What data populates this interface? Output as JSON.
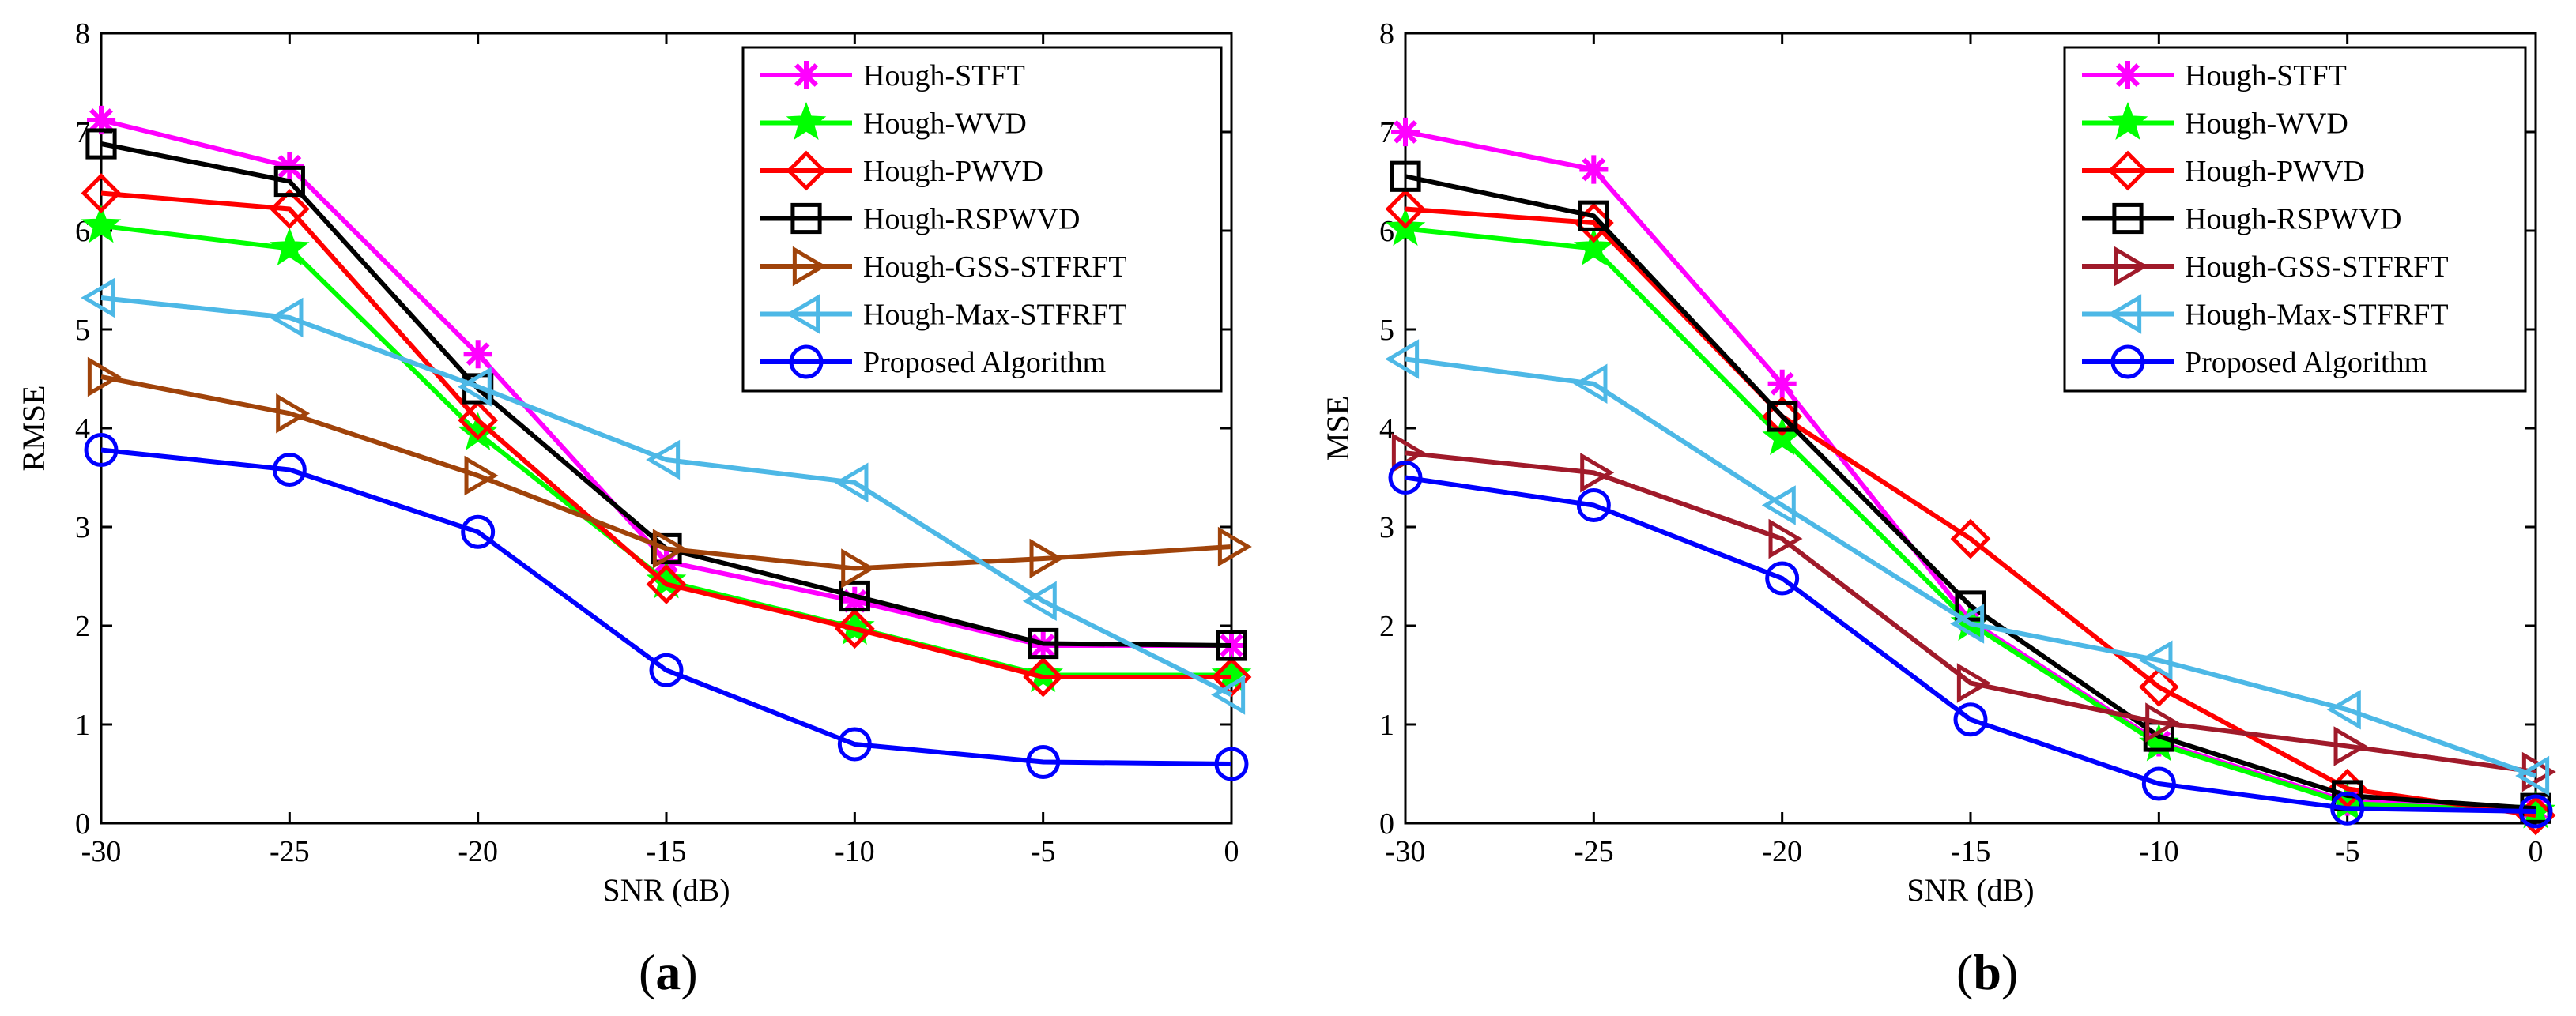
{
  "chart_data": [
    {
      "type": "line",
      "caption_letter": "a",
      "caption_open": "(",
      "caption_close": ")",
      "title": "",
      "xlabel": "SNR (dB)",
      "ylabel": "RMSE",
      "xlim": [
        -30,
        0
      ],
      "ylim": [
        0,
        8
      ],
      "xticks": [
        -30,
        -25,
        -20,
        -15,
        -10,
        -5,
        0
      ],
      "yticks": [
        0,
        1,
        2,
        3,
        4,
        5,
        6,
        7,
        8
      ],
      "grid": false,
      "legend_position": "top-right",
      "x": [
        -30,
        -25,
        -20,
        -15,
        -10,
        -5,
        0
      ],
      "series": [
        {
          "name": "Hough-STFT",
          "color": "#ff00ff",
          "marker": "asterisk",
          "values": [
            7.12,
            6.65,
            4.75,
            2.65,
            2.25,
            1.8,
            1.8
          ]
        },
        {
          "name": "Hough-WVD",
          "color": "#00ff00",
          "marker": "star",
          "values": [
            6.05,
            5.82,
            3.95,
            2.45,
            1.98,
            1.5,
            1.5
          ]
        },
        {
          "name": "Hough-PWVD",
          "color": "#ff0000",
          "marker": "diamond",
          "values": [
            6.38,
            6.22,
            4.08,
            2.42,
            1.97,
            1.48,
            1.48
          ]
        },
        {
          "name": "Hough-RSPWVD",
          "color": "#000000",
          "marker": "square",
          "values": [
            6.88,
            6.5,
            4.4,
            2.78,
            2.3,
            1.82,
            1.8
          ]
        },
        {
          "name": "Hough-GSS-STFRFT",
          "color": "#a0430a",
          "marker": "triangle-right",
          "values": [
            4.52,
            4.15,
            3.52,
            2.78,
            2.58,
            2.68,
            2.8
          ]
        },
        {
          "name": "Hough-Max-STFRFT",
          "color": "#4db8e6",
          "marker": "triangle-left",
          "values": [
            5.32,
            5.12,
            4.42,
            3.68,
            3.45,
            2.25,
            1.3
          ]
        },
        {
          "name": "Proposed Algorithm",
          "color": "#0000ff",
          "marker": "circle",
          "values": [
            3.78,
            3.58,
            2.95,
            1.55,
            0.8,
            0.62,
            0.6
          ]
        }
      ]
    },
    {
      "type": "line",
      "caption_letter": "b",
      "caption_open": "(",
      "caption_close": ")",
      "title": "",
      "xlabel": "SNR (dB)",
      "ylabel": "MSE",
      "xlim": [
        -30,
        0
      ],
      "ylim": [
        0,
        8
      ],
      "xticks": [
        -30,
        -25,
        -20,
        -15,
        -10,
        -5,
        0
      ],
      "yticks": [
        0,
        1,
        2,
        3,
        4,
        5,
        6,
        7,
        8
      ],
      "grid": false,
      "legend_position": "top-right",
      "x": [
        -30,
        -25,
        -20,
        -15,
        -10,
        -5,
        0
      ],
      "series": [
        {
          "name": "Hough-STFT",
          "color": "#ff00ff",
          "marker": "asterisk",
          "values": [
            7.0,
            6.62,
            4.45,
            2.05,
            0.82,
            0.22,
            0.15
          ]
        },
        {
          "name": "Hough-WVD",
          "color": "#00ff00",
          "marker": "star",
          "values": [
            6.02,
            5.82,
            3.9,
            2.02,
            0.8,
            0.2,
            0.12
          ]
        },
        {
          "name": "Hough-PWVD",
          "color": "#ff0000",
          "marker": "diamond",
          "values": [
            6.22,
            6.08,
            4.12,
            2.88,
            1.38,
            0.35,
            0.08
          ]
        },
        {
          "name": "Hough-RSPWVD",
          "color": "#000000",
          "marker": "square",
          "values": [
            6.55,
            6.15,
            4.12,
            2.2,
            0.88,
            0.28,
            0.15
          ]
        },
        {
          "name": "Hough-GSS-STFRFT",
          "color": "#a01a2a",
          "marker": "triangle-right",
          "values": [
            3.75,
            3.55,
            2.88,
            1.42,
            1.02,
            0.78,
            0.52
          ]
        },
        {
          "name": "Hough-Max-STFRFT",
          "color": "#4db8e6",
          "marker": "triangle-left",
          "values": [
            4.7,
            4.45,
            3.22,
            2.02,
            1.65,
            1.15,
            0.48
          ]
        },
        {
          "name": "Proposed Algorithm",
          "color": "#0000ff",
          "marker": "circle",
          "values": [
            3.5,
            3.22,
            2.48,
            1.05,
            0.4,
            0.15,
            0.12
          ]
        }
      ]
    }
  ]
}
